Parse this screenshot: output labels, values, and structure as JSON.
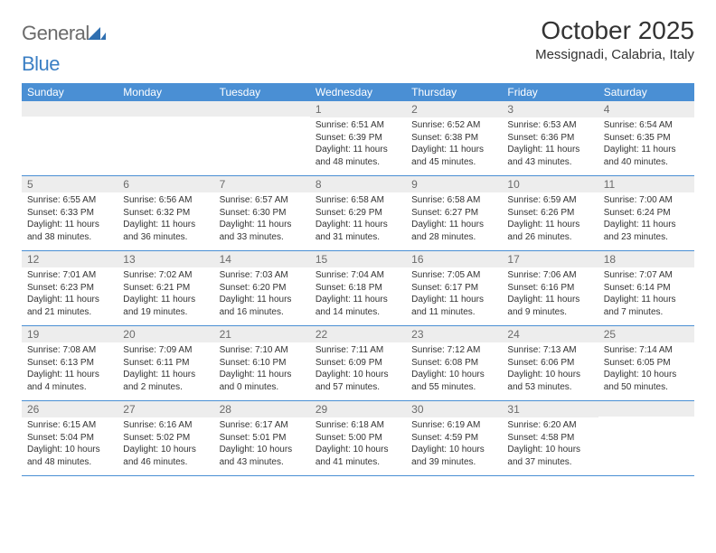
{
  "brand": {
    "text1": "General",
    "text2": "Blue"
  },
  "title": "October 2025",
  "location": "Messignadi, Calabria, Italy",
  "colors": {
    "header_bg": "#4a8fd4",
    "header_text": "#ffffff",
    "day_num_bg": "#ededed",
    "day_num_text": "#6b6b6b",
    "border": "#4a8fd4",
    "text": "#333333",
    "brand_gray": "#6b6b6b",
    "brand_blue": "#3b7fc4",
    "background": "#ffffff"
  },
  "typography": {
    "title_fontsize": 28,
    "location_fontsize": 15,
    "weekday_fontsize": 12,
    "daynum_fontsize": 12,
    "body_fontsize": 10,
    "font_family": "Arial"
  },
  "layout": {
    "columns": 7,
    "rows": 5,
    "first_day_column": 3,
    "cell_min_height": 82
  },
  "weekdays": [
    "Sunday",
    "Monday",
    "Tuesday",
    "Wednesday",
    "Thursday",
    "Friday",
    "Saturday"
  ],
  "days": [
    {
      "n": 1,
      "sunrise": "6:51 AM",
      "sunset": "6:39 PM",
      "daylight": "11 hours and 48 minutes."
    },
    {
      "n": 2,
      "sunrise": "6:52 AM",
      "sunset": "6:38 PM",
      "daylight": "11 hours and 45 minutes."
    },
    {
      "n": 3,
      "sunrise": "6:53 AM",
      "sunset": "6:36 PM",
      "daylight": "11 hours and 43 minutes."
    },
    {
      "n": 4,
      "sunrise": "6:54 AM",
      "sunset": "6:35 PM",
      "daylight": "11 hours and 40 minutes."
    },
    {
      "n": 5,
      "sunrise": "6:55 AM",
      "sunset": "6:33 PM",
      "daylight": "11 hours and 38 minutes."
    },
    {
      "n": 6,
      "sunrise": "6:56 AM",
      "sunset": "6:32 PM",
      "daylight": "11 hours and 36 minutes."
    },
    {
      "n": 7,
      "sunrise": "6:57 AM",
      "sunset": "6:30 PM",
      "daylight": "11 hours and 33 minutes."
    },
    {
      "n": 8,
      "sunrise": "6:58 AM",
      "sunset": "6:29 PM",
      "daylight": "11 hours and 31 minutes."
    },
    {
      "n": 9,
      "sunrise": "6:58 AM",
      "sunset": "6:27 PM",
      "daylight": "11 hours and 28 minutes."
    },
    {
      "n": 10,
      "sunrise": "6:59 AM",
      "sunset": "6:26 PM",
      "daylight": "11 hours and 26 minutes."
    },
    {
      "n": 11,
      "sunrise": "7:00 AM",
      "sunset": "6:24 PM",
      "daylight": "11 hours and 23 minutes."
    },
    {
      "n": 12,
      "sunrise": "7:01 AM",
      "sunset": "6:23 PM",
      "daylight": "11 hours and 21 minutes."
    },
    {
      "n": 13,
      "sunrise": "7:02 AM",
      "sunset": "6:21 PM",
      "daylight": "11 hours and 19 minutes."
    },
    {
      "n": 14,
      "sunrise": "7:03 AM",
      "sunset": "6:20 PM",
      "daylight": "11 hours and 16 minutes."
    },
    {
      "n": 15,
      "sunrise": "7:04 AM",
      "sunset": "6:18 PM",
      "daylight": "11 hours and 14 minutes."
    },
    {
      "n": 16,
      "sunrise": "7:05 AM",
      "sunset": "6:17 PM",
      "daylight": "11 hours and 11 minutes."
    },
    {
      "n": 17,
      "sunrise": "7:06 AM",
      "sunset": "6:16 PM",
      "daylight": "11 hours and 9 minutes."
    },
    {
      "n": 18,
      "sunrise": "7:07 AM",
      "sunset": "6:14 PM",
      "daylight": "11 hours and 7 minutes."
    },
    {
      "n": 19,
      "sunrise": "7:08 AM",
      "sunset": "6:13 PM",
      "daylight": "11 hours and 4 minutes."
    },
    {
      "n": 20,
      "sunrise": "7:09 AM",
      "sunset": "6:11 PM",
      "daylight": "11 hours and 2 minutes."
    },
    {
      "n": 21,
      "sunrise": "7:10 AM",
      "sunset": "6:10 PM",
      "daylight": "11 hours and 0 minutes."
    },
    {
      "n": 22,
      "sunrise": "7:11 AM",
      "sunset": "6:09 PM",
      "daylight": "10 hours and 57 minutes."
    },
    {
      "n": 23,
      "sunrise": "7:12 AM",
      "sunset": "6:08 PM",
      "daylight": "10 hours and 55 minutes."
    },
    {
      "n": 24,
      "sunrise": "7:13 AM",
      "sunset": "6:06 PM",
      "daylight": "10 hours and 53 minutes."
    },
    {
      "n": 25,
      "sunrise": "7:14 AM",
      "sunset": "6:05 PM",
      "daylight": "10 hours and 50 minutes."
    },
    {
      "n": 26,
      "sunrise": "6:15 AM",
      "sunset": "5:04 PM",
      "daylight": "10 hours and 48 minutes."
    },
    {
      "n": 27,
      "sunrise": "6:16 AM",
      "sunset": "5:02 PM",
      "daylight": "10 hours and 46 minutes."
    },
    {
      "n": 28,
      "sunrise": "6:17 AM",
      "sunset": "5:01 PM",
      "daylight": "10 hours and 43 minutes."
    },
    {
      "n": 29,
      "sunrise": "6:18 AM",
      "sunset": "5:00 PM",
      "daylight": "10 hours and 41 minutes."
    },
    {
      "n": 30,
      "sunrise": "6:19 AM",
      "sunset": "4:59 PM",
      "daylight": "10 hours and 39 minutes."
    },
    {
      "n": 31,
      "sunrise": "6:20 AM",
      "sunset": "4:58 PM",
      "daylight": "10 hours and 37 minutes."
    }
  ],
  "labels": {
    "sunrise": "Sunrise:",
    "sunset": "Sunset:",
    "daylight": "Daylight:"
  }
}
